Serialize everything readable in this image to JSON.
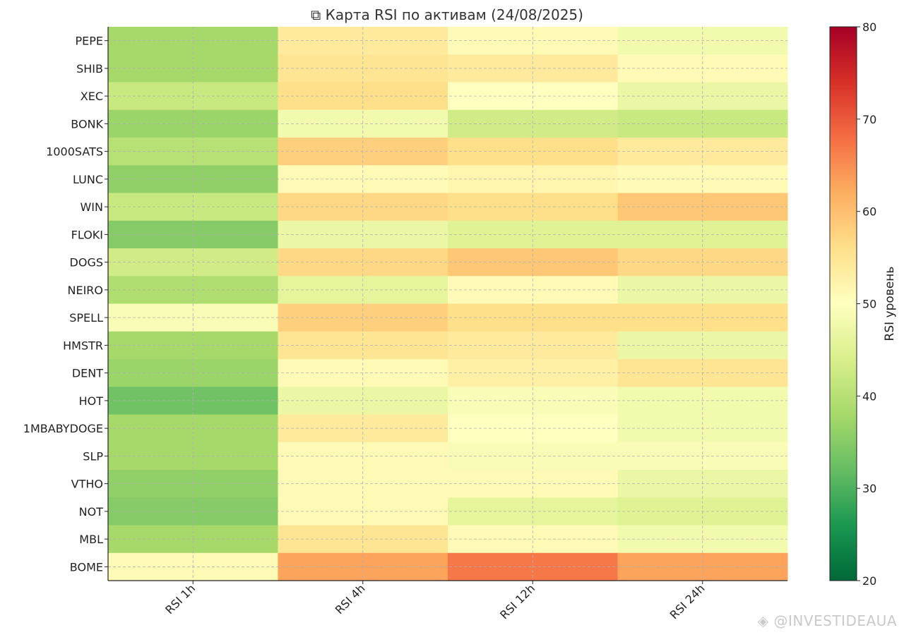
{
  "chart_data": {
    "type": "heatmap",
    "title": "⧉ Карта RSI по активам (24/08/2025)",
    "columns": [
      "RSI 1h",
      "RSI 4h",
      "RSI 12h",
      "RSI 24h"
    ],
    "rows": [
      "PEPE",
      "SHIB",
      "XEC",
      "BONK",
      "1000SATS",
      "LUNC",
      "WIN",
      "FLOKI",
      "DOGS",
      "NEIRO",
      "SPELL",
      "HMSTR",
      "DENT",
      "HOT",
      "1MBABYDOGE",
      "SLP",
      "VTHO",
      "NOT",
      "MBL",
      "BOME"
    ],
    "values": [
      [
        38,
        54,
        51,
        48
      ],
      [
        38,
        55,
        54,
        51
      ],
      [
        42,
        56,
        50,
        47
      ],
      [
        37,
        48,
        43,
        42
      ],
      [
        40,
        58,
        56,
        54
      ],
      [
        36,
        51,
        52,
        51
      ],
      [
        42,
        57,
        56,
        59
      ],
      [
        35,
        47,
        45,
        45
      ],
      [
        43,
        57,
        59,
        57
      ],
      [
        39,
        46,
        51,
        47
      ],
      [
        49,
        58,
        56,
        56
      ],
      [
        38,
        55,
        54,
        47
      ],
      [
        37,
        51,
        53,
        55
      ],
      [
        33,
        47,
        49,
        48
      ],
      [
        38,
        54,
        50,
        48
      ],
      [
        38,
        51,
        49,
        49
      ],
      [
        36,
        51,
        51,
        47
      ],
      [
        35,
        51,
        46,
        45
      ],
      [
        38,
        55,
        51,
        48
      ],
      [
        51,
        63,
        67,
        63
      ]
    ],
    "colorbar": {
      "label": "RSI уровень",
      "min": 20,
      "max": 80,
      "ticks": [
        20,
        30,
        40,
        50,
        60,
        70,
        80
      ],
      "colormap": "RdYlGn_r",
      "colors": [
        "#006837",
        "#1a9850",
        "#66bd63",
        "#a6d96a",
        "#d9ef8b",
        "#ffffbf",
        "#fee08b",
        "#fdae61",
        "#f46d43",
        "#d73027",
        "#a50026"
      ]
    },
    "grid": true
  },
  "watermark": {
    "text": "@INVESTIDEAUA",
    "icon": "binance-logo-icon"
  }
}
